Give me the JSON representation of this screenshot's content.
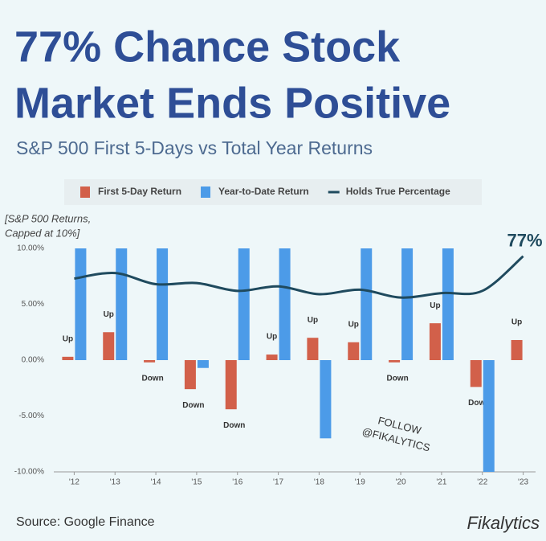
{
  "chart_data": {
    "type": "bar",
    "title": [
      "77% Chance Stock",
      "Market Ends Positive"
    ],
    "subtitle": "S&P 500 First 5-Days vs Total Year Returns",
    "y_label": [
      "[S&P 500 Returns,",
      "Capped at 10%]"
    ],
    "source": "Source: Google Finance",
    "brand": "Fikalytics",
    "watermark": [
      "FOLLOW",
      "@FIKALYTICS"
    ],
    "line_end_label": "77%",
    "categories": [
      "'12",
      "'13",
      "'14",
      "'15",
      "'16",
      "'17",
      "'18",
      "'19",
      "'20",
      "'21",
      "'22",
      "'23"
    ],
    "series": [
      {
        "name": "First 5-Day Return",
        "type": "bar",
        "color": "#d2604a",
        "values": [
          0.3,
          2.5,
          -0.2,
          -2.6,
          -4.4,
          0.5,
          2.0,
          1.6,
          -0.2,
          3.3,
          -2.4,
          1.8
        ],
        "value_labels": [
          "Up",
          "Up",
          "Down",
          "Down",
          "Down",
          "Up",
          "Up",
          "Up",
          "Down",
          "Up",
          "Down",
          "Up"
        ]
      },
      {
        "name": "Year-to-Date Return",
        "type": "bar",
        "color": "#4c9be8",
        "values": [
          10,
          10,
          10,
          -0.7,
          10,
          10,
          -7.0,
          10,
          10,
          10,
          -10,
          null
        ]
      },
      {
        "name": "Holds True Percentage",
        "type": "line",
        "color": "#1f4a5e",
        "values": [
          7.3,
          7.8,
          6.8,
          6.9,
          6.2,
          6.6,
          5.9,
          6.3,
          5.6,
          6.0,
          6.2,
          9.3
        ]
      }
    ],
    "ylim": [
      -10,
      10
    ],
    "yticks": [
      {
        "value": -10,
        "label": "-10.00%"
      },
      {
        "value": -5,
        "label": "-5.00%"
      },
      {
        "value": 0,
        "label": "0.00%"
      },
      {
        "value": 5,
        "label": "5.00%"
      },
      {
        "value": 10,
        "label": "10.00%"
      }
    ],
    "grid": false
  }
}
